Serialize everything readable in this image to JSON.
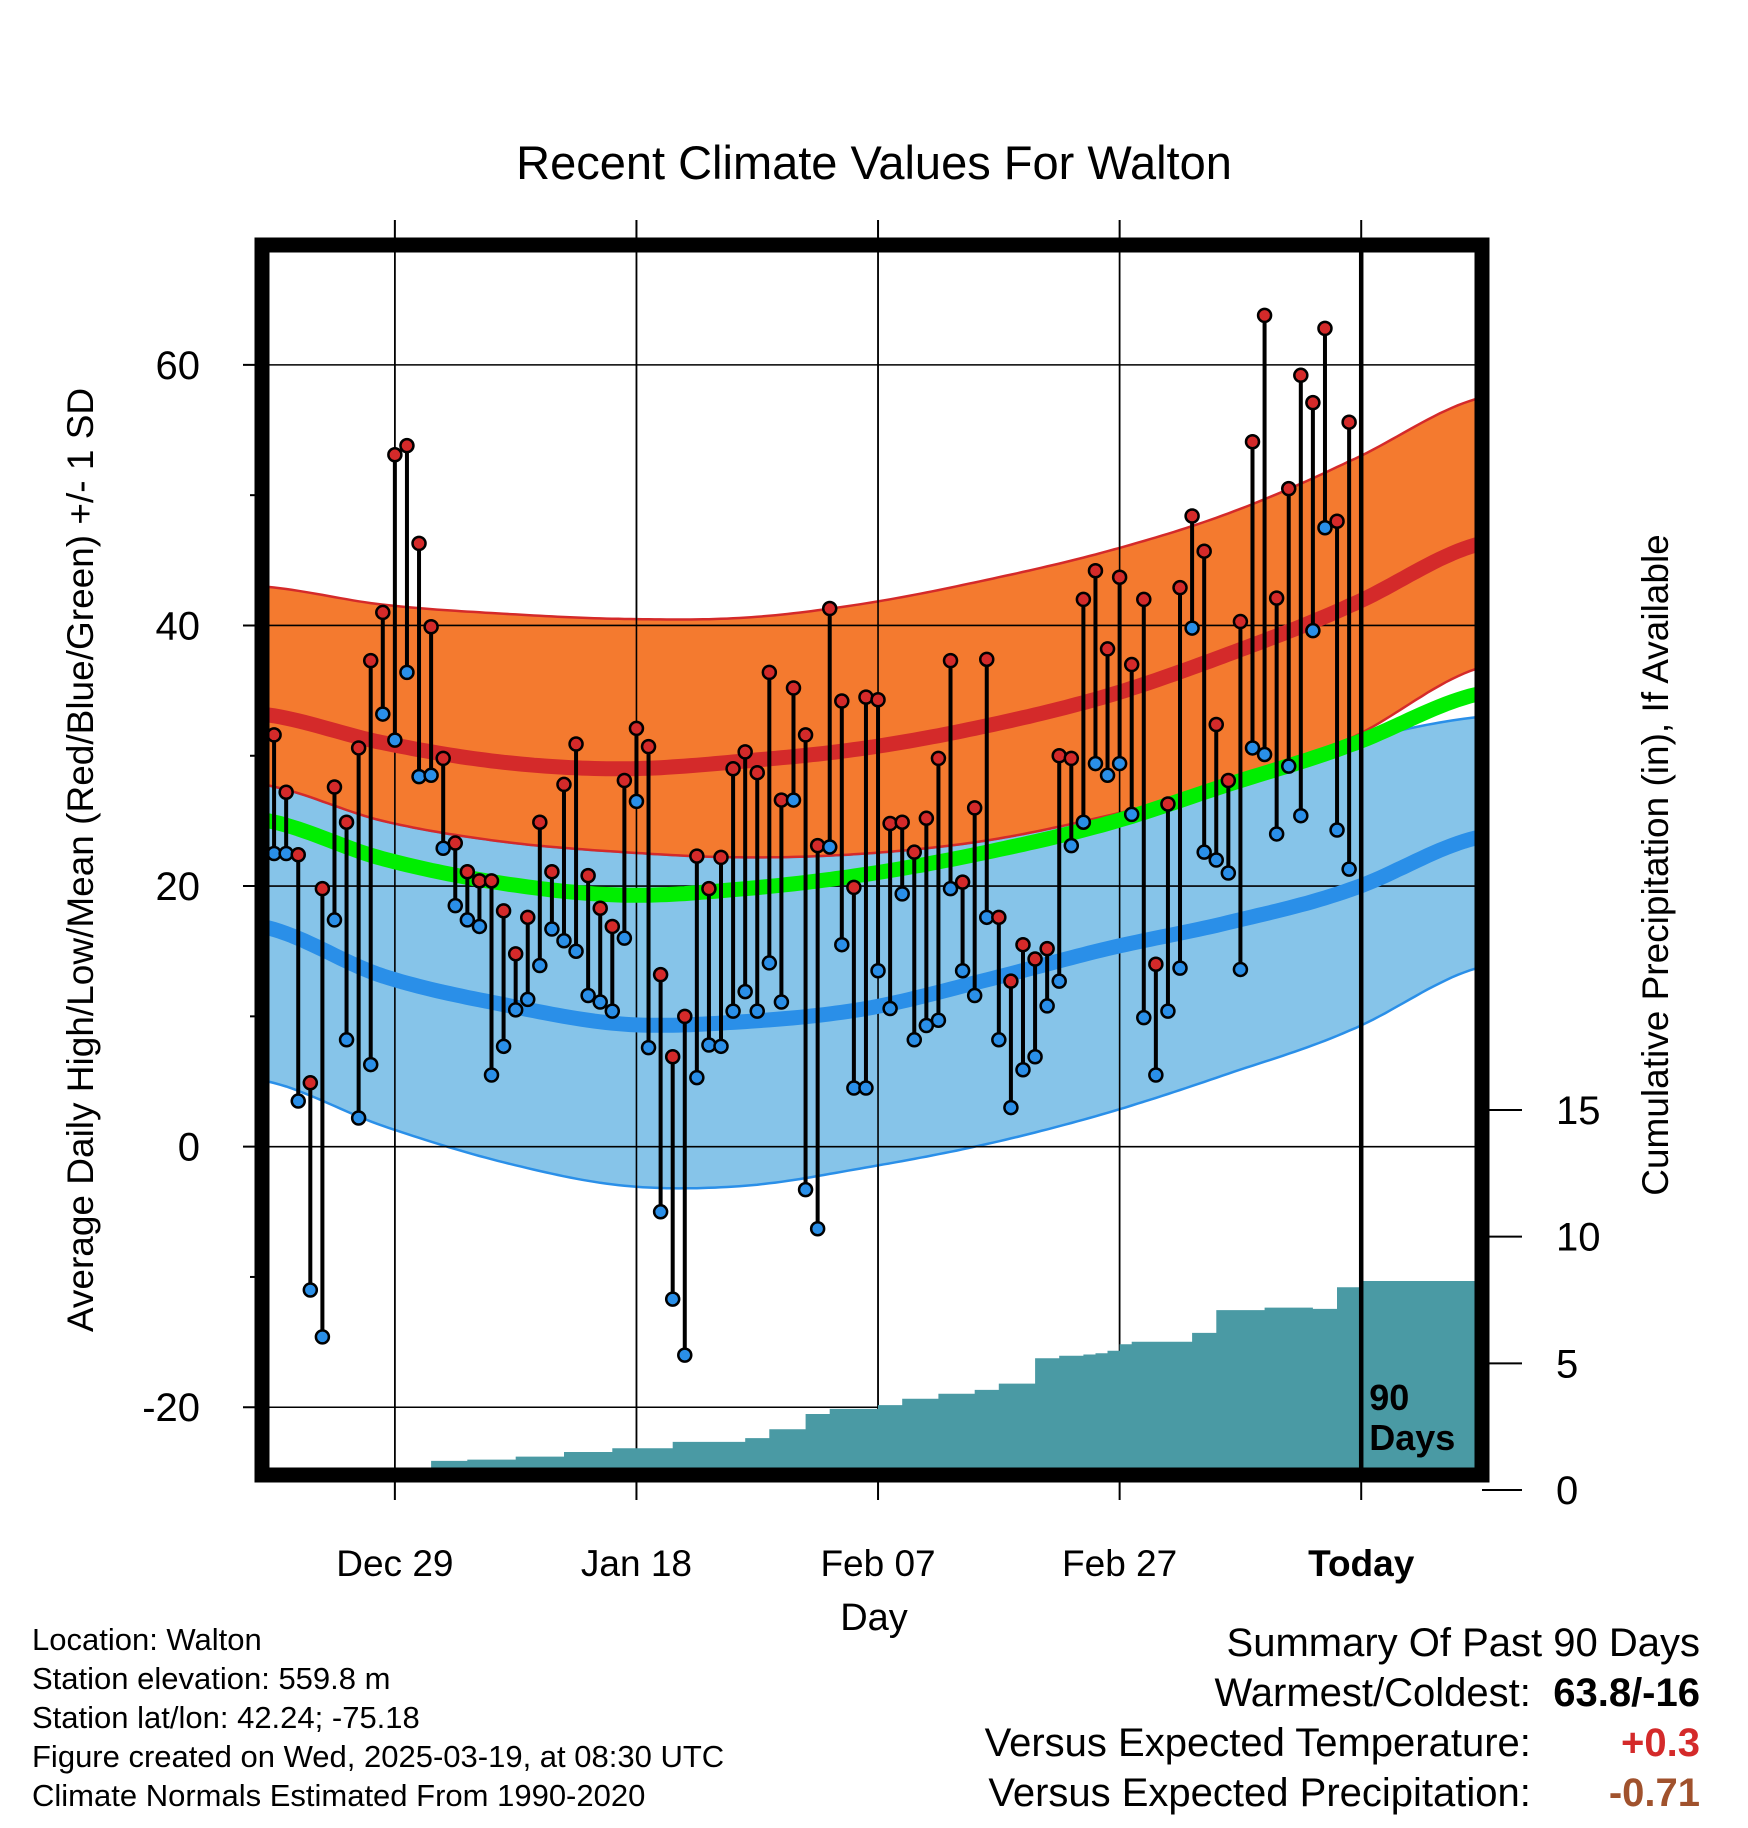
{
  "chart_data": {
    "type": "line",
    "title": "Recent Climate Values For Walton",
    "xlabel": "Day",
    "ylabel": "Average Daily High/Low/Mean (Red/Blue/Green) +/- 1 SD",
    "y2label": "Cumulative Precipitation (in), If Available",
    "x_ticks": [
      {
        "day": 10,
        "label": "Dec 29"
      },
      {
        "day": 30,
        "label": "Jan 18"
      },
      {
        "day": 50,
        "label": "Feb 07"
      },
      {
        "day": 70,
        "label": "Feb 27"
      },
      {
        "day": 90,
        "label": "Today"
      }
    ],
    "y_ticks": [
      -20,
      0,
      20,
      40,
      60
    ],
    "ylim": [
      -25.2,
      69.2
    ],
    "xlim": [
      -1,
      100
    ],
    "y2_ticks": [
      0,
      5,
      10,
      15
    ],
    "y2lim": [
      0,
      45
    ],
    "today_label": "90\nDays",
    "normals": {
      "days": [
        -1,
        9,
        19,
        29,
        39,
        49,
        59,
        69,
        79,
        89,
        100
      ],
      "high_mean": [
        33.2,
        31.0,
        29.5,
        29.0,
        29.6,
        30.6,
        32.3,
        34.6,
        37.8,
        41.5,
        46.3
      ],
      "high_upper": [
        43.0,
        41.6,
        40.9,
        40.5,
        40.6,
        41.7,
        43.5,
        45.7,
        48.6,
        52.6,
        57.5
      ],
      "high_lower": [
        27.8,
        25.0,
        23.4,
        22.6,
        22.2,
        22.5,
        23.5,
        25.4,
        27.8,
        31.3,
        36.8
      ],
      "low_mean": [
        16.9,
        13.1,
        10.9,
        9.4,
        9.6,
        10.6,
        12.8,
        15.2,
        17.2,
        19.7,
        23.8
      ],
      "low_upper": [
        27.8,
        25.0,
        23.4,
        22.6,
        22.2,
        22.5,
        23.5,
        25.4,
        27.8,
        31.0,
        33.0
      ],
      "low_lower": [
        5.1,
        1.6,
        -1.2,
        -3.0,
        -3.0,
        -1.6,
        0.2,
        2.6,
        5.6,
        8.9,
        13.8
      ],
      "mean_mean": [
        25.1,
        22.1,
        20.2,
        19.3,
        19.8,
        20.9,
        22.6,
        24.8,
        27.8,
        30.8,
        34.8
      ]
    },
    "daily": {
      "high": [
        31.6,
        27.2,
        22.4,
        4.9,
        19.8,
        27.6,
        24.9,
        30.6,
        37.3,
        41.0,
        53.1,
        53.8,
        46.3,
        39.9,
        29.8,
        23.3,
        21.1,
        20.4,
        20.4,
        18.1,
        14.8,
        17.6,
        24.9,
        21.1,
        27.8,
        30.9,
        20.8,
        18.3,
        16.9,
        28.1,
        32.1,
        30.7,
        13.2,
        6.9,
        10.0,
        22.3,
        19.8,
        22.2,
        29.0,
        30.3,
        28.7,
        36.4,
        26.6,
        35.2,
        31.6,
        23.1,
        41.3,
        34.2,
        19.9,
        34.5,
        34.3,
        24.8,
        24.9,
        22.6,
        25.2,
        29.8,
        37.3,
        20.3,
        26.0,
        37.4,
        17.6,
        12.7,
        15.5,
        14.4,
        15.2,
        30.0,
        29.8,
        42.0,
        44.2,
        38.2,
        43.7,
        37.0,
        42.0,
        14.0,
        26.3,
        42.9,
        48.4,
        45.7,
        32.4,
        28.1,
        40.3,
        54.1,
        63.8,
        42.1,
        50.5,
        59.2,
        57.1,
        62.8,
        48.0,
        55.6
      ],
      "low": [
        22.5,
        22.5,
        3.5,
        -11.0,
        -14.6,
        17.4,
        8.2,
        2.2,
        6.3,
        33.2,
        31.2,
        36.4,
        28.4,
        28.5,
        22.9,
        18.5,
        17.4,
        16.9,
        5.5,
        7.7,
        10.5,
        11.3,
        13.9,
        16.7,
        15.8,
        15.0,
        11.6,
        11.1,
        10.4,
        16.0,
        26.5,
        7.6,
        -5.0,
        -11.7,
        -16.0,
        5.3,
        7.8,
        7.7,
        10.4,
        11.9,
        10.4,
        14.1,
        11.1,
        26.6,
        -3.3,
        -6.3,
        23.0,
        15.5,
        4.5,
        4.5,
        13.5,
        10.6,
        19.4,
        8.2,
        9.3,
        9.7,
        19.8,
        13.5,
        11.6,
        17.6,
        8.2,
        3.0,
        5.9,
        6.9,
        10.8,
        12.7,
        23.1,
        24.9,
        29.4,
        28.5,
        29.4,
        25.5,
        9.9,
        5.5,
        10.4,
        13.7,
        39.8,
        22.6,
        22.0,
        21.0,
        13.6,
        30.6,
        30.1,
        24.0,
        29.2,
        25.4,
        39.6,
        47.5,
        24.3,
        21.3
      ]
    },
    "precip": {
      "days": [
        4,
        8,
        9,
        10,
        11,
        12,
        13,
        16,
        20,
        24,
        28,
        33,
        39,
        41,
        44,
        46,
        50,
        52,
        55,
        58,
        60,
        63,
        65,
        67,
        68,
        69,
        70,
        71,
        76,
        78,
        82,
        86,
        88,
        90,
        100
      ],
      "cum": [
        0.0,
        0.05,
        0.22,
        0.42,
        0.55,
        0.72,
        1.15,
        1.2,
        1.32,
        1.5,
        1.65,
        1.9,
        2.05,
        2.4,
        3.0,
        3.2,
        3.35,
        3.6,
        3.8,
        3.95,
        4.2,
        5.2,
        5.3,
        5.35,
        5.4,
        5.5,
        5.75,
        5.85,
        6.2,
        7.1,
        7.2,
        7.15,
        8.0,
        8.25,
        8.25
      ]
    }
  },
  "legend_colors": {
    "high_band": "#f47a2f",
    "high_line": "#d42a2a",
    "low_band": "#86c4e9",
    "low_line": "#2a8fe8",
    "overlap_band": "#961414",
    "mean_line": "#00ee00",
    "precip_fill": "#4a9aa4",
    "high_dot": "#d42a2a",
    "low_dot": "#2a8fe8"
  },
  "footer": {
    "location": "Location: Walton",
    "elevation": "Station elevation: 559.8 m",
    "latlon": "Station lat/lon: 42.24; -75.18",
    "created": "Figure created on Wed, 2025-03-19, at 08:30 UTC",
    "normals": "Climate Normals Estimated From 1990-2020"
  },
  "summary": {
    "title": "Summary Of Past 90 Days",
    "warmest_label": "Warmest/Coldest:",
    "warmest_value": "63.8/-16",
    "temp_label": "Versus Expected Temperature:",
    "temp_value": "+0.3",
    "temp_color": "#d42a2a",
    "precip_label": "Versus Expected Precipitation:",
    "precip_value": "-0.71",
    "precip_color": "#a0522d"
  }
}
